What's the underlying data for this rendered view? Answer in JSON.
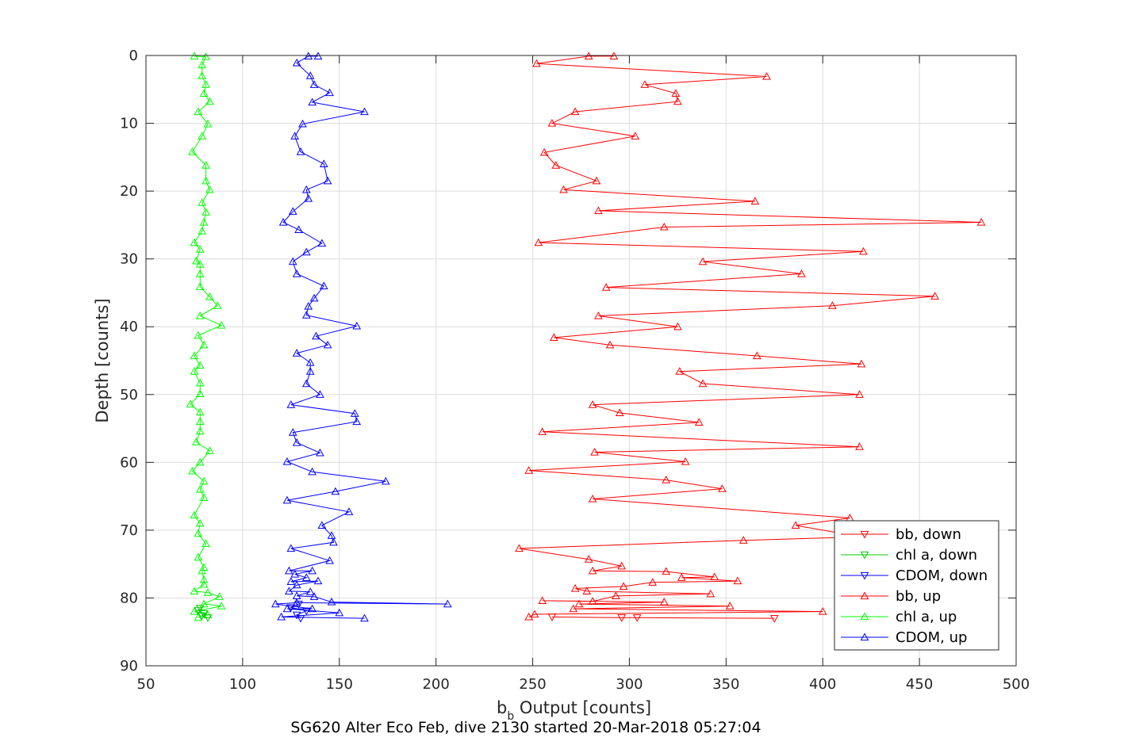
{
  "chart_data": {
    "type": "line",
    "title": "SG620 Alter Eco Feb, dive 2130 started 20-Mar-2018 05:27:04",
    "xlabel_main": "b",
    "xlabel_sub": "b",
    "xlabel_rest": " Output [counts]",
    "ylabel": "Depth [counts]",
    "xlim": [
      50,
      500
    ],
    "ylim": [
      0,
      90
    ],
    "y_reversed": true,
    "grid": true,
    "xticks": [
      50,
      100,
      150,
      200,
      250,
      300,
      350,
      400,
      450,
      500
    ],
    "yticks": [
      0,
      10,
      20,
      30,
      40,
      50,
      60,
      70,
      80,
      90
    ],
    "legend_position": "lower-right",
    "legend": [
      {
        "label": "bb, down",
        "color": "#ff0000",
        "marker": "down"
      },
      {
        "label": "chl a, down",
        "color": "#00cc00",
        "marker": "down"
      },
      {
        "label": "CDOM, down",
        "color": "#0000ff",
        "marker": "down"
      },
      {
        "label": "bb, up",
        "color": "#ff0000",
        "marker": "up"
      },
      {
        "label": "chl a, up",
        "color": "#00ff00",
        "marker": "up"
      },
      {
        "label": "CDOM, up",
        "color": "#0000ff",
        "marker": "up"
      }
    ],
    "series": [
      {
        "name": "bb, down",
        "color": "#ff0000",
        "marker": "down",
        "points": [
          [
            375,
            83.0
          ],
          [
            304,
            82.9
          ],
          [
            296,
            82.9
          ],
          [
            260,
            82.8
          ]
        ]
      },
      {
        "name": "chl a, down",
        "color": "#00cc00",
        "marker": "down",
        "points": [
          [
            82,
            82.9
          ],
          [
            79,
            82.6
          ],
          [
            80,
            82.3
          ],
          [
            77,
            81.8
          ],
          [
            78,
            81.5
          ]
        ]
      },
      {
        "name": "CDOM, down",
        "color": "#0000ff",
        "marker": "down",
        "points": [
          [
            130,
            83.0
          ],
          [
            128,
            82.5
          ],
          [
            133,
            81.9
          ],
          [
            125,
            81.4
          ],
          [
            129,
            80.9
          ]
        ]
      },
      {
        "name": "bb, up",
        "color": "#ff0000",
        "marker": "up",
        "points": [
          [
            248,
            82.8
          ],
          [
            251,
            82.4
          ],
          [
            400,
            82.0
          ],
          [
            271,
            81.6
          ],
          [
            352,
            81.2
          ],
          [
            274,
            80.9
          ],
          [
            318,
            80.6
          ],
          [
            255,
            80.4
          ],
          [
            281,
            80.5
          ],
          [
            293,
            79.7
          ],
          [
            342,
            79.4
          ],
          [
            278,
            79.0
          ],
          [
            272,
            78.6
          ],
          [
            297,
            78.3
          ],
          [
            312,
            77.7
          ],
          [
            356,
            77.5
          ],
          [
            327,
            77.0
          ],
          [
            344,
            76.9
          ],
          [
            319,
            76.1
          ],
          [
            281,
            76.0
          ],
          [
            296,
            75.3
          ],
          [
            279,
            74.3
          ],
          [
            243,
            72.7
          ],
          [
            359,
            71.5
          ],
          [
            420,
            71.0
          ],
          [
            386,
            69.3
          ],
          [
            414,
            68.2
          ],
          [
            281,
            65.4
          ],
          [
            348,
            63.9
          ],
          [
            319,
            62.6
          ],
          [
            248,
            61.2
          ],
          [
            329,
            59.9
          ],
          [
            282,
            58.5
          ],
          [
            419,
            57.7
          ],
          [
            255,
            55.5
          ],
          [
            336,
            54.1
          ],
          [
            295,
            52.7
          ],
          [
            281,
            51.5
          ],
          [
            419,
            50.0
          ],
          [
            338,
            48.4
          ],
          [
            326,
            46.6
          ],
          [
            420,
            45.5
          ],
          [
            366,
            44.3
          ],
          [
            290,
            42.7
          ],
          [
            261,
            41.6
          ],
          [
            325,
            40.0
          ],
          [
            284,
            38.4
          ],
          [
            405,
            36.9
          ],
          [
            458,
            35.5
          ],
          [
            288,
            34.2
          ],
          [
            389,
            32.2
          ],
          [
            338,
            30.4
          ],
          [
            421,
            28.9
          ],
          [
            253,
            27.6
          ],
          [
            318,
            25.3
          ],
          [
            482,
            24.6
          ],
          [
            284,
            22.9
          ],
          [
            365,
            21.5
          ],
          [
            266,
            19.8
          ],
          [
            283,
            18.5
          ],
          [
            262,
            16.2
          ],
          [
            256,
            14.3
          ],
          [
            303,
            11.9
          ],
          [
            260,
            10.0
          ],
          [
            272,
            8.3
          ],
          [
            325,
            6.8
          ],
          [
            324,
            5.6
          ],
          [
            308,
            4.3
          ],
          [
            371,
            3.1
          ],
          [
            252,
            1.2
          ],
          [
            279,
            0.1
          ],
          [
            292,
            0.1
          ]
        ]
      },
      {
        "name": "chl a, up",
        "color": "#00ff00",
        "marker": "up",
        "points": [
          [
            77,
            82.9
          ],
          [
            82,
            82.5
          ],
          [
            75,
            82.0
          ],
          [
            89,
            81.2
          ],
          [
            80,
            80.9
          ],
          [
            88,
            79.8
          ],
          [
            82,
            79.2
          ],
          [
            75,
            79.0
          ],
          [
            80,
            78.0
          ],
          [
            80,
            77.3
          ],
          [
            79,
            76.0
          ],
          [
            80,
            75.5
          ],
          [
            77,
            74.0
          ],
          [
            81,
            72.0
          ],
          [
            77,
            70.5
          ],
          [
            78,
            69.0
          ],
          [
            75,
            67.8
          ],
          [
            80,
            65.2
          ],
          [
            78,
            64.0
          ],
          [
            80,
            62.8
          ],
          [
            74,
            61.3
          ],
          [
            78,
            60.0
          ],
          [
            83,
            58.3
          ],
          [
            76,
            57.0
          ],
          [
            78,
            55.4
          ],
          [
            78,
            54.0
          ],
          [
            78,
            52.6
          ],
          [
            73,
            51.4
          ],
          [
            78,
            49.9
          ],
          [
            78,
            48.3
          ],
          [
            75,
            46.6
          ],
          [
            78,
            45.7
          ],
          [
            75,
            44.3
          ],
          [
            80,
            42.7
          ],
          [
            77,
            41.3
          ],
          [
            89,
            39.8
          ],
          [
            78,
            38.4
          ],
          [
            87,
            36.9
          ],
          [
            83,
            35.6
          ],
          [
            78,
            34.1
          ],
          [
            78,
            32.2
          ],
          [
            78,
            30.8
          ],
          [
            76,
            30.3
          ],
          [
            78,
            28.6
          ],
          [
            75,
            27.6
          ],
          [
            79,
            25.9
          ],
          [
            80,
            24.6
          ],
          [
            81,
            23.1
          ],
          [
            79,
            21.7
          ],
          [
            83,
            19.8
          ],
          [
            81,
            18.5
          ],
          [
            81,
            16.2
          ],
          [
            74,
            14.2
          ],
          [
            79,
            11.9
          ],
          [
            82,
            10.1
          ],
          [
            77,
            8.3
          ],
          [
            83,
            6.8
          ],
          [
            80,
            5.6
          ],
          [
            81,
            4.3
          ],
          [
            79,
            3.0
          ],
          [
            79,
            1.4
          ],
          [
            81,
            0.2
          ],
          [
            75,
            0.1
          ]
        ]
      },
      {
        "name": "CDOM, up",
        "color": "#0000ff",
        "marker": "up",
        "points": [
          [
            163,
            83.0
          ],
          [
            120,
            82.8
          ],
          [
            150,
            82.2
          ],
          [
            123,
            81.6
          ],
          [
            136,
            81.6
          ],
          [
            117,
            80.9
          ],
          [
            128,
            80.7
          ],
          [
            206,
            80.9
          ],
          [
            146,
            80.6
          ],
          [
            137,
            79.8
          ],
          [
            128,
            79.7
          ],
          [
            135,
            79.1
          ],
          [
            124,
            79.0
          ],
          [
            128,
            78.1
          ],
          [
            139,
            77.5
          ],
          [
            125,
            77.6
          ],
          [
            133,
            77.0
          ],
          [
            127,
            76.5
          ],
          [
            136,
            76.0
          ],
          [
            124,
            76.0
          ],
          [
            145,
            74.5
          ],
          [
            125,
            72.7
          ],
          [
            147,
            71.8
          ],
          [
            146,
            70.8
          ],
          [
            141,
            69.3
          ],
          [
            155,
            67.3
          ],
          [
            123,
            65.6
          ],
          [
            148,
            64.3
          ],
          [
            174,
            62.8
          ],
          [
            136,
            61.4
          ],
          [
            123,
            59.9
          ],
          [
            140,
            58.6
          ],
          [
            128,
            57.1
          ],
          [
            126,
            55.6
          ],
          [
            159,
            54.0
          ],
          [
            158,
            52.8
          ],
          [
            125,
            51.5
          ],
          [
            140,
            50.0
          ],
          [
            133,
            48.4
          ],
          [
            135,
            46.6
          ],
          [
            135,
            45.3
          ],
          [
            128,
            43.9
          ],
          [
            144,
            42.7
          ],
          [
            138,
            41.4
          ],
          [
            159,
            39.9
          ],
          [
            133,
            38.3
          ],
          [
            134,
            37.0
          ],
          [
            137,
            35.8
          ],
          [
            142,
            34.0
          ],
          [
            128,
            32.2
          ],
          [
            126,
            30.4
          ],
          [
            133,
            29.0
          ],
          [
            141,
            27.7
          ],
          [
            129,
            25.7
          ],
          [
            121,
            24.6
          ],
          [
            126,
            23.0
          ],
          [
            134,
            21.1
          ],
          [
            133,
            19.8
          ],
          [
            144,
            18.5
          ],
          [
            142,
            16.0
          ],
          [
            130,
            14.2
          ],
          [
            127,
            11.9
          ],
          [
            131,
            10.1
          ],
          [
            163,
            8.3
          ],
          [
            136,
            6.9
          ],
          [
            145,
            5.5
          ],
          [
            137,
            4.3
          ],
          [
            135,
            3.0
          ],
          [
            128,
            1.1
          ],
          [
            134,
            0.1
          ],
          [
            139,
            0.1
          ]
        ]
      }
    ]
  }
}
